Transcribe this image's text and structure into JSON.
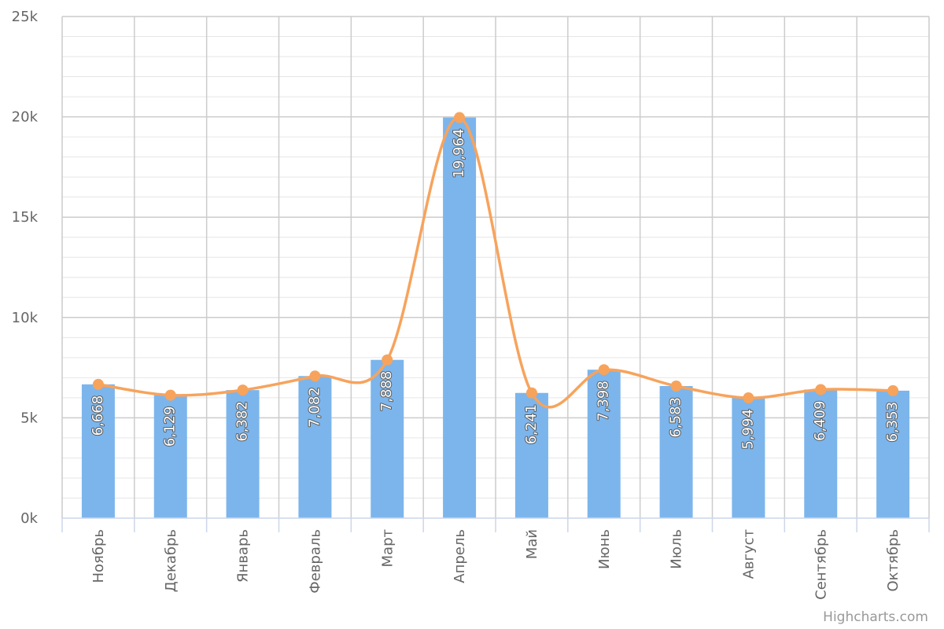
{
  "chart_data": {
    "type": "bar",
    "categories": [
      "Ноябрь",
      "Декабрь",
      "Январь",
      "Февраль",
      "Март",
      "Апрель",
      "Май",
      "Июнь",
      "Июль",
      "Август",
      "Сентябрь",
      "Октябрь"
    ],
    "series": [
      {
        "type": "bar",
        "values": [
          6668,
          6129,
          6382,
          7082,
          7888,
          19964,
          6241,
          7398,
          6583,
          5994,
          6409,
          6353
        ],
        "data_labels": [
          "6,668",
          "6,129",
          "6,382",
          "7,082",
          "7,888",
          "19,964",
          "6,241",
          "7,398",
          "6,583",
          "5,994",
          "6,409",
          "6,353"
        ],
        "color": "#7cb5ec"
      },
      {
        "type": "spline",
        "values": [
          6668,
          6129,
          6382,
          7082,
          7888,
          19964,
          6241,
          7398,
          6583,
          5994,
          6409,
          6353
        ],
        "color": "#f7a35c"
      }
    ],
    "y_ticks": [
      "0k",
      "5k",
      "10k",
      "15k",
      "20k",
      "25k"
    ],
    "y_tick_values": [
      0,
      5000,
      10000,
      15000,
      20000,
      25000
    ],
    "ylim": [
      0,
      25000
    ],
    "grid": true,
    "xlabel": "",
    "ylabel": "",
    "title": "",
    "credits": "Highcharts.com",
    "colors": {
      "bar": "#7cb5ec",
      "line": "#f7a35c",
      "grid_major": "#cccccc",
      "grid_minor": "#e6e6e6",
      "axis": "#ccd6eb"
    }
  }
}
